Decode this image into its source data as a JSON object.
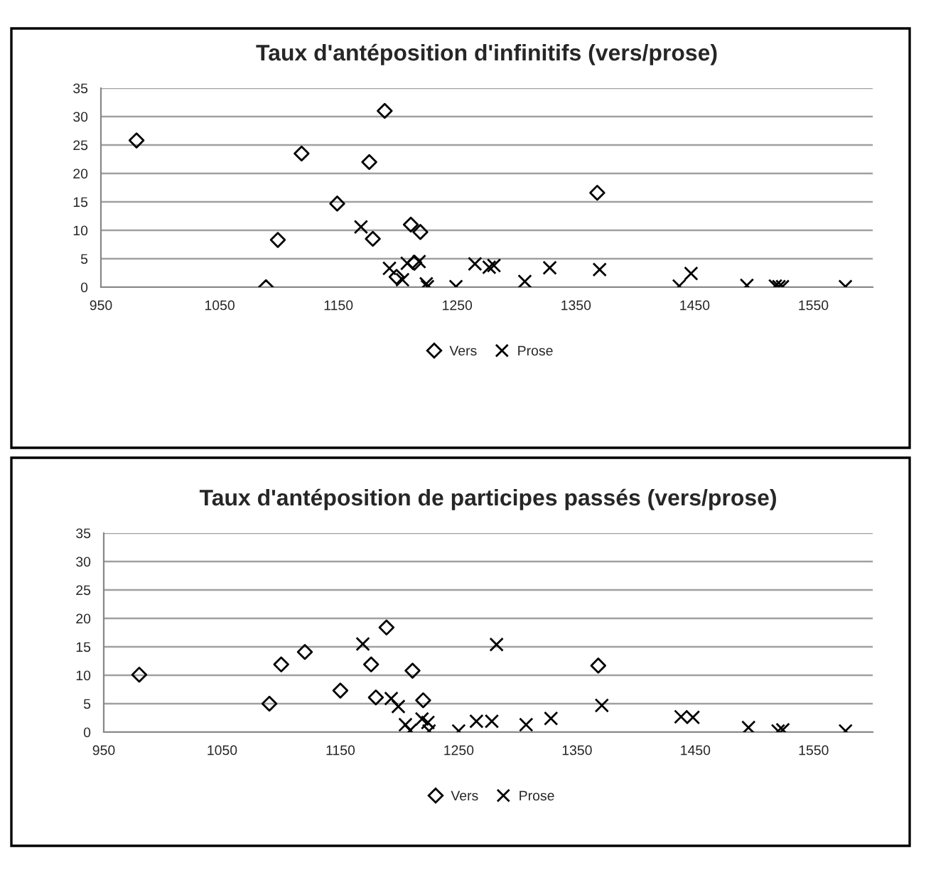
{
  "chart_data": [
    {
      "type": "scatter",
      "title": "Taux d'antéposition d'infinitifs (vers/prose)",
      "xlim": [
        950,
        1600
      ],
      "xticks": [
        950,
        1050,
        1150,
        1250,
        1350,
        1450,
        1550
      ],
      "ylim": [
        0,
        35
      ],
      "yticks": [
        0,
        5,
        10,
        15,
        20,
        25,
        30,
        35
      ],
      "grid": "y",
      "legend": "bottom",
      "series": [
        {
          "name": "Vers",
          "color": "#000000",
          "marker": "diamond",
          "x": [
            980,
            1089,
            1099,
            1119,
            1149,
            1176,
            1179,
            1189,
            1199,
            1211,
            1214,
            1219,
            1368
          ],
          "values": [
            25.8,
            0,
            8.3,
            23.5,
            14.7,
            22,
            8.5,
            31,
            1.8,
            11,
            4.3,
            9.7,
            16.6
          ]
        },
        {
          "name": "Prose",
          "color": "#000000",
          "marker": "cross",
          "x": [
            1169,
            1193,
            1204,
            1208,
            1218,
            1224,
            1225,
            1249,
            1265,
            1277,
            1281,
            1307,
            1328,
            1370,
            1437,
            1447,
            1494,
            1518,
            1521,
            1524,
            1577
          ],
          "values": [
            10.6,
            3.3,
            1.3,
            4.2,
            4.5,
            0.6,
            0.1,
            0.1,
            4.1,
            3.5,
            3.8,
            1.0,
            3.4,
            3.1,
            0.2,
            2.4,
            0.3,
            0.2,
            0.1,
            0.1,
            0.1
          ]
        }
      ]
    },
    {
      "type": "scatter",
      "title": "Taux d'antéposition de participes passés (vers/prose)",
      "xlim": [
        950,
        1600
      ],
      "xticks": [
        950,
        1050,
        1150,
        1250,
        1350,
        1450,
        1550
      ],
      "ylim": [
        0,
        35
      ],
      "yticks": [
        0,
        5,
        10,
        15,
        20,
        25,
        30,
        35
      ],
      "grid": "y",
      "legend": "bottom",
      "series": [
        {
          "name": "Vers",
          "color": "#000000",
          "marker": "diamond",
          "x": [
            980,
            1090,
            1100,
            1120,
            1150,
            1176,
            1180,
            1189,
            1211,
            1220,
            1368
          ],
          "values": [
            10.1,
            5.0,
            11.9,
            14.1,
            7.3,
            11.9,
            6.1,
            18.4,
            10.8,
            5.6,
            11.7
          ]
        },
        {
          "name": "Prose",
          "color": "#000000",
          "marker": "cross",
          "x": [
            1169,
            1193,
            1199,
            1205,
            1209,
            1219,
            1224,
            1225,
            1250,
            1265,
            1278,
            1282,
            1307,
            1328,
            1371,
            1438,
            1448,
            1495,
            1520,
            1524,
            1577
          ],
          "values": [
            15.5,
            5.9,
            4.5,
            1.3,
            0.3,
            2.3,
            1.7,
            0.2,
            0.2,
            1.9,
            1.9,
            15.4,
            1.3,
            2.4,
            4.7,
            2.7,
            2.6,
            0.8,
            0.2,
            0.4,
            0.2
          ]
        }
      ]
    }
  ]
}
